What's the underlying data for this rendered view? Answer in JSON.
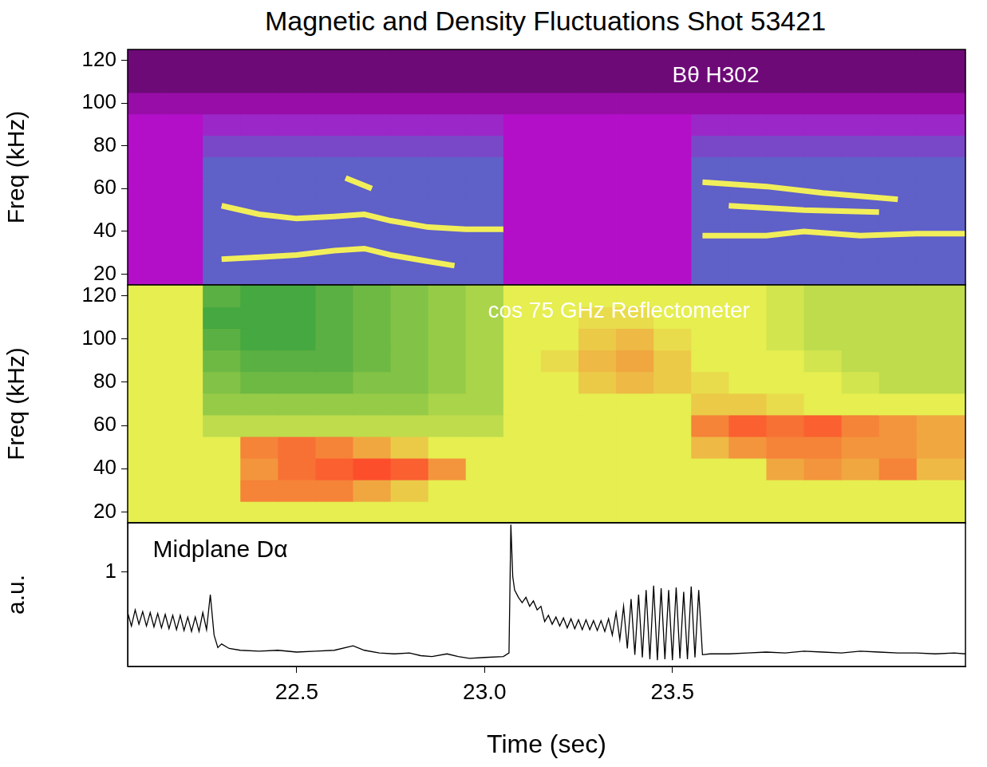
{
  "title": "Magnetic and Density Fluctuations Shot 53421",
  "chart_data": [
    {
      "type": "heatmap",
      "annotation": "Bθ H302",
      "ylabel": "Freq (kHz)",
      "xlim": [
        22.05,
        24.28
      ],
      "ylim": [
        15,
        125
      ],
      "yticks": [
        20,
        40,
        60,
        80,
        100,
        120
      ],
      "tick_labels": "y",
      "grid": false,
      "x_edges": [
        22.05,
        22.15,
        22.25,
        22.35,
        22.45,
        22.55,
        22.65,
        22.75,
        22.85,
        22.95,
        23.05,
        23.15,
        23.25,
        23.35,
        23.45,
        23.55,
        23.65,
        23.75,
        23.85,
        23.95,
        24.05,
        24.15,
        24.28
      ],
      "y_edges": [
        15,
        25,
        35,
        45,
        55,
        65,
        75,
        85,
        95,
        105,
        115,
        125
      ],
      "zlim": [
        0,
        6
      ],
      "colors": [
        "#6e0a78",
        "#b40fc8",
        "#5f60c8",
        "#1e963c",
        "#e6ee50",
        "#ff3c28",
        "#ffffff"
      ],
      "z": [
        [
          1,
          1,
          2,
          2,
          2,
          2,
          2,
          2,
          2,
          2,
          1,
          1,
          1,
          1,
          1,
          2,
          2,
          2,
          2,
          2,
          2,
          2
        ],
        [
          1,
          1,
          2,
          2,
          2,
          2,
          2,
          2,
          2,
          2,
          1,
          1,
          1,
          1,
          1,
          2,
          2,
          2,
          2,
          2,
          2,
          2
        ],
        [
          1,
          1,
          2,
          2,
          2,
          2,
          2,
          2,
          2,
          2,
          1,
          1,
          1,
          1,
          1,
          2,
          2,
          2,
          2,
          2,
          2,
          2
        ],
        [
          1,
          1,
          2,
          2,
          2,
          2,
          2,
          2,
          2,
          2,
          1,
          1,
          1,
          1,
          1,
          2,
          2,
          2,
          2,
          2,
          2,
          2
        ],
        [
          1,
          1,
          2,
          2,
          2,
          2,
          2,
          2,
          2,
          2,
          1,
          1,
          1,
          1,
          1,
          2,
          2,
          2,
          2,
          2,
          2,
          2
        ],
        [
          1,
          1,
          2,
          2,
          2,
          2,
          2,
          2,
          2,
          2,
          1,
          1,
          1,
          1,
          1,
          2,
          2,
          2,
          2,
          2,
          2,
          2
        ],
        [
          1,
          1,
          1.7,
          1.7,
          1.7,
          1.7,
          1.7,
          1.7,
          1.7,
          1.7,
          1,
          1,
          1,
          1,
          1,
          1.7,
          1.7,
          1.7,
          1.7,
          1.7,
          1.7,
          1.7
        ],
        [
          1,
          1,
          1.3,
          1.3,
          1.3,
          1.3,
          1.3,
          1.3,
          1.3,
          1.3,
          1,
          1,
          1,
          1,
          1,
          1.3,
          1.3,
          1.3,
          1.3,
          1.3,
          1.3,
          1.3
        ],
        [
          0.6,
          0.6,
          0.6,
          0.6,
          0.6,
          0.6,
          0.6,
          0.6,
          0.6,
          0.6,
          0.6,
          0.6,
          0.6,
          0.6,
          0.6,
          0.6,
          0.6,
          0.6,
          0.6,
          0.6,
          0.6,
          0.6
        ],
        [
          0,
          0,
          0,
          0,
          0,
          0,
          0,
          0,
          0,
          0,
          0,
          0,
          0,
          0,
          0,
          0,
          0,
          0,
          0,
          0,
          0,
          0
        ],
        [
          0,
          0,
          0,
          0,
          0,
          0,
          0,
          0,
          0,
          0,
          0,
          0,
          0,
          0,
          0,
          0,
          0,
          0,
          0,
          0,
          0,
          0
        ]
      ],
      "series": [
        {
          "type": "line",
          "color": "#f2ee5a",
          "x": [
            22.3,
            22.4,
            22.5,
            22.6,
            22.68,
            22.75,
            22.85,
            22.92
          ],
          "values": [
            27,
            28,
            29,
            31,
            32,
            29,
            26,
            24
          ]
        },
        {
          "type": "line",
          "color": "#f2ee5a",
          "x": [
            22.3,
            22.4,
            22.5,
            22.6,
            22.68,
            22.75,
            22.85,
            22.95,
            23.05
          ],
          "values": [
            52,
            48,
            46,
            47,
            48,
            45,
            42,
            41,
            41
          ]
        },
        {
          "type": "line",
          "color": "#f2ee5a",
          "x": [
            22.63,
            22.7
          ],
          "values": [
            65,
            60
          ]
        },
        {
          "type": "line",
          "color": "#f2ee5a",
          "x": [
            23.58,
            23.75,
            23.9,
            24.1
          ],
          "values": [
            63,
            61,
            58,
            55
          ]
        },
        {
          "type": "line",
          "color": "#f2ee5a",
          "x": [
            23.65,
            23.85,
            24.05
          ],
          "values": [
            52,
            50,
            49
          ]
        },
        {
          "type": "line",
          "color": "#f2ee5a",
          "x": [
            23.58,
            23.75,
            23.85,
            24.0,
            24.15,
            24.28
          ],
          "values": [
            38,
            38,
            40,
            38,
            39,
            39
          ]
        }
      ]
    },
    {
      "type": "heatmap",
      "annotation": "cos 75 GHz Reflectometer",
      "ylabel": "Freq (kHz)",
      "xlim": [
        22.05,
        24.28
      ],
      "ylim": [
        15,
        125
      ],
      "yticks": [
        20,
        40,
        60,
        80,
        100,
        120
      ],
      "tick_labels": "y",
      "grid": false,
      "x_edges": [
        22.05,
        22.15,
        22.25,
        22.35,
        22.45,
        22.55,
        22.65,
        22.75,
        22.85,
        22.95,
        23.05,
        23.15,
        23.25,
        23.35,
        23.45,
        23.55,
        23.65,
        23.75,
        23.85,
        23.95,
        24.05,
        24.15,
        24.28
      ],
      "y_edges": [
        15,
        25,
        35,
        45,
        55,
        65,
        75,
        85,
        95,
        105,
        115,
        125
      ],
      "zlim": [
        0,
        6
      ],
      "colors": [
        "#6e0a78",
        "#b40fc8",
        "#5f60c8",
        "#1e963c",
        "#e6ee50",
        "#ff3c28",
        "#ffffff"
      ],
      "z": [
        [
          4,
          4,
          4,
          4,
          4,
          4,
          4,
          4,
          4,
          4,
          4,
          4,
          4,
          4,
          4,
          4,
          4,
          4,
          4,
          4,
          4,
          4
        ],
        [
          4,
          4,
          4,
          4.6,
          4.6,
          4.6,
          4.4,
          4.2,
          4,
          4,
          4,
          4,
          4,
          4,
          4,
          4,
          4,
          4,
          4,
          4,
          4,
          4
        ],
        [
          4,
          4,
          4,
          4.5,
          4.7,
          4.8,
          4.9,
          4.8,
          4.5,
          4,
          4,
          4,
          4,
          4,
          4,
          4,
          4,
          4.4,
          4.5,
          4.4,
          4.6,
          4.3
        ],
        [
          4,
          4,
          4,
          4.6,
          4.7,
          4.6,
          4.4,
          4.2,
          4,
          4,
          4,
          4,
          4,
          4,
          4,
          4.3,
          4.5,
          4.6,
          4.6,
          4.5,
          4.5,
          4.4
        ],
        [
          4,
          4,
          3.8,
          3.8,
          3.8,
          3.8,
          3.8,
          3.8,
          3.8,
          3.8,
          4,
          4,
          4,
          4,
          4,
          4.6,
          4.8,
          4.7,
          4.8,
          4.6,
          4.5,
          4.4
        ],
        [
          4,
          4,
          3.6,
          3.6,
          3.6,
          3.6,
          3.6,
          3.6,
          3.7,
          3.7,
          4,
          4,
          4,
          4,
          4,
          4.2,
          4.2,
          4.1,
          4,
          4,
          4,
          4
        ],
        [
          4,
          4,
          3.5,
          3.4,
          3.4,
          3.4,
          3.5,
          3.5,
          3.6,
          3.7,
          4,
          4,
          4.2,
          4.3,
          4.2,
          4.1,
          4,
          4,
          4,
          3.9,
          3.8,
          3.8
        ],
        [
          4,
          4,
          3.4,
          3.3,
          3.3,
          3.3,
          3.4,
          3.5,
          3.6,
          3.7,
          4,
          4.1,
          4.3,
          4.4,
          4.2,
          4,
          4,
          4,
          3.9,
          3.8,
          3.8,
          3.8
        ],
        [
          4,
          4,
          3.3,
          3.2,
          3.2,
          3.3,
          3.4,
          3.5,
          3.6,
          3.7,
          4,
          4,
          4.2,
          4.3,
          4.1,
          4,
          4,
          3.9,
          3.8,
          3.8,
          3.8,
          3.8
        ],
        [
          4,
          4,
          3.2,
          3.2,
          3.2,
          3.3,
          3.4,
          3.5,
          3.6,
          3.7,
          4,
          4,
          4.1,
          4.1,
          4,
          4,
          4,
          3.9,
          3.8,
          3.8,
          3.8,
          3.8
        ],
        [
          4,
          4,
          3.3,
          3.2,
          3.2,
          3.3,
          3.4,
          3.5,
          3.6,
          3.7,
          4,
          4,
          4,
          4,
          4,
          4,
          4,
          3.9,
          3.8,
          3.8,
          3.8,
          3.8
        ]
      ]
    },
    {
      "type": "line",
      "annotation": "Midplane Dα",
      "ylabel": "a.u.",
      "xlabel": "Time (sec)",
      "xlim": [
        22.05,
        24.28
      ],
      "xticks": [
        22.5,
        {
          "value": 23,
          "label": "23.0"
        },
        23.5
      ],
      "ylim": [
        -0.05,
        1.55
      ],
      "yticks": [
        1
      ],
      "grid": false,
      "color": "#000000",
      "x": [
        22.05,
        22.06,
        22.07,
        22.08,
        22.09,
        22.1,
        22.11,
        22.12,
        22.13,
        22.14,
        22.15,
        22.16,
        22.17,
        22.18,
        22.19,
        22.2,
        22.21,
        22.22,
        22.23,
        22.24,
        22.25,
        22.26,
        22.27,
        22.28,
        22.29,
        22.3,
        22.32,
        22.35,
        22.4,
        22.45,
        22.5,
        22.55,
        22.6,
        22.65,
        22.68,
        22.72,
        22.76,
        22.8,
        22.83,
        22.86,
        22.9,
        22.93,
        22.96,
        23.0,
        23.05,
        23.065,
        23.07,
        23.075,
        23.08,
        23.09,
        23.1,
        23.11,
        23.12,
        23.13,
        23.14,
        23.15,
        23.16,
        23.17,
        23.18,
        23.19,
        23.2,
        23.21,
        23.22,
        23.23,
        23.24,
        23.25,
        23.26,
        23.27,
        23.28,
        23.29,
        23.3,
        23.31,
        23.32,
        23.33,
        23.34,
        23.35,
        23.36,
        23.37,
        23.38,
        23.39,
        23.4,
        23.41,
        23.42,
        23.43,
        23.44,
        23.45,
        23.46,
        23.47,
        23.48,
        23.49,
        23.5,
        23.51,
        23.52,
        23.53,
        23.54,
        23.55,
        23.56,
        23.57,
        23.58,
        23.6,
        23.65,
        23.7,
        23.75,
        23.8,
        23.85,
        23.9,
        23.95,
        24.0,
        24.05,
        24.1,
        24.15,
        24.2,
        24.25,
        24.28
      ],
      "values": [
        0.55,
        0.4,
        0.58,
        0.42,
        0.56,
        0.4,
        0.55,
        0.39,
        0.54,
        0.38,
        0.53,
        0.37,
        0.52,
        0.36,
        0.52,
        0.35,
        0.5,
        0.34,
        0.5,
        0.34,
        0.55,
        0.36,
        0.75,
        0.3,
        0.16,
        0.2,
        0.15,
        0.13,
        0.12,
        0.13,
        0.11,
        0.12,
        0.13,
        0.18,
        0.13,
        0.1,
        0.09,
        0.1,
        0.07,
        0.06,
        0.09,
        0.06,
        0.04,
        0.05,
        0.06,
        0.1,
        1.53,
        0.95,
        0.8,
        0.72,
        0.66,
        0.72,
        0.62,
        0.68,
        0.58,
        0.62,
        0.45,
        0.52,
        0.42,
        0.5,
        0.4,
        0.49,
        0.38,
        0.48,
        0.37,
        0.47,
        0.36,
        0.47,
        0.36,
        0.46,
        0.35,
        0.46,
        0.34,
        0.48,
        0.3,
        0.55,
        0.25,
        0.62,
        0.15,
        0.7,
        0.08,
        0.75,
        0.05,
        0.8,
        0.03,
        0.85,
        0.02,
        0.82,
        0.03,
        0.8,
        0.02,
        0.83,
        0.04,
        0.78,
        0.03,
        0.84,
        0.05,
        0.8,
        0.08,
        0.09,
        0.09,
        0.1,
        0.11,
        0.1,
        0.12,
        0.11,
        0.1,
        0.12,
        0.11,
        0.1,
        0.1,
        0.09,
        0.1,
        0.09
      ]
    }
  ]
}
